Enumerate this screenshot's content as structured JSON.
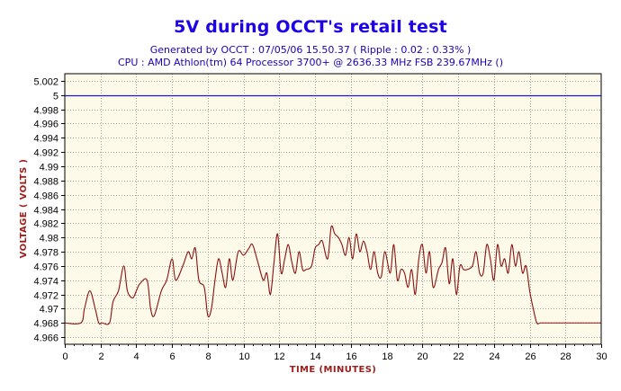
{
  "chart_data": {
    "type": "line",
    "title": "5V during OCCT's retail test",
    "subtitle_lines": [
      "Generated by OCCT : 07/05/06 15.50.37 ( Ripple : 0.02 : 0.33% )",
      "CPU : AMD Athlon(tm) 64 Processor 3700+ @ 2636.33 MHz FSB 239.67MHz ()"
    ],
    "xlabel": "TIME (MINUTES)",
    "ylabel": "VOLTAGE ( VOLTS )",
    "xlim": [
      0,
      30
    ],
    "ylim": [
      4.965,
      5.003
    ],
    "x_ticks": [
      "0",
      "2",
      "4",
      "6",
      "8",
      "10",
      "12",
      "14",
      "16",
      "18",
      "20",
      "22",
      "24",
      "26",
      "28",
      "30"
    ],
    "x_tick_values": [
      0,
      2,
      4,
      6,
      8,
      10,
      12,
      14,
      16,
      18,
      20,
      22,
      24,
      26,
      28,
      30
    ],
    "y_ticks": [
      "4.966",
      "4.968",
      "4.97",
      "4.972",
      "4.974",
      "4.976",
      "4.978",
      "4.98",
      "4.982",
      "4.984",
      "4.986",
      "4.988",
      "4.99",
      "4.992",
      "4.994",
      "4.996",
      "4.998",
      "5",
      "5.002"
    ],
    "y_tick_values": [
      4.966,
      4.968,
      4.97,
      4.972,
      4.974,
      4.976,
      4.978,
      4.98,
      4.982,
      4.984,
      4.986,
      4.988,
      4.99,
      4.992,
      4.994,
      4.996,
      4.998,
      5.0,
      5.002
    ],
    "grid": true,
    "reference_line": {
      "y": 5.0,
      "color": "#1a1ad6"
    },
    "series": [
      {
        "color": "#8b1010",
        "x": [
          0,
          0.9,
          1.1,
          1.4,
          1.7,
          1.9,
          2.1,
          2.5,
          2.7,
          3.0,
          3.3,
          3.5,
          3.8,
          4.0,
          4.2,
          4.6,
          4.8,
          5.0,
          5.4,
          5.7,
          6.0,
          6.2,
          6.6,
          6.9,
          7.1,
          7.3,
          7.5,
          7.8,
          8.0,
          8.2,
          8.4,
          8.6,
          8.8,
          9.0,
          9.2,
          9.4,
          9.7,
          10.0,
          10.3,
          10.5,
          10.8,
          11.1,
          11.3,
          11.5,
          11.7,
          11.9,
          12.1,
          12.3,
          12.5,
          12.7,
          12.9,
          13.1,
          13.3,
          13.5,
          13.8,
          14.0,
          14.2,
          14.4,
          14.7,
          14.9,
          15.1,
          15.3,
          15.5,
          15.7,
          15.9,
          16.1,
          16.3,
          16.5,
          16.7,
          16.9,
          17.1,
          17.3,
          17.5,
          17.7,
          17.9,
          18.2,
          18.4,
          18.6,
          18.8,
          19.0,
          19.2,
          19.4,
          19.6,
          19.8,
          20.0,
          20.2,
          20.4,
          20.6,
          20.9,
          21.1,
          21.3,
          21.5,
          21.7,
          21.9,
          22.1,
          22.3,
          22.5,
          22.8,
          23.0,
          23.2,
          23.4,
          23.6,
          23.8,
          24.0,
          24.2,
          24.4,
          24.6,
          24.8,
          25.0,
          25.2,
          25.4,
          25.6,
          25.8,
          26.0,
          26.2,
          26.4,
          26.6,
          27.0,
          30
        ],
        "values": [
          4.968,
          4.968,
          4.97,
          4.9725,
          4.97,
          4.968,
          4.968,
          4.968,
          4.971,
          4.9725,
          4.976,
          4.9725,
          4.9715,
          4.9725,
          4.9735,
          4.974,
          4.97,
          4.969,
          4.9725,
          4.974,
          4.977,
          4.974,
          4.976,
          4.978,
          4.977,
          4.9785,
          4.974,
          4.973,
          4.969,
          4.97,
          4.974,
          4.977,
          4.975,
          4.973,
          4.977,
          4.974,
          4.978,
          4.9775,
          4.9785,
          4.979,
          4.9765,
          4.974,
          4.975,
          4.972,
          4.9765,
          4.9805,
          4.975,
          4.977,
          4.979,
          4.9765,
          4.975,
          4.978,
          4.9755,
          4.9755,
          4.976,
          4.9785,
          4.979,
          4.9795,
          4.977,
          4.9815,
          4.9805,
          4.98,
          4.979,
          4.9775,
          4.98,
          4.977,
          4.9805,
          4.978,
          4.9795,
          4.978,
          4.9755,
          4.978,
          4.975,
          4.9745,
          4.978,
          4.975,
          4.979,
          4.974,
          4.9755,
          4.975,
          4.973,
          4.9755,
          4.972,
          4.977,
          4.979,
          4.975,
          4.978,
          4.973,
          4.9755,
          4.9765,
          4.9785,
          4.9735,
          4.977,
          4.972,
          4.976,
          4.9755,
          4.9755,
          4.976,
          4.978,
          4.975,
          4.975,
          4.979,
          4.977,
          4.974,
          4.979,
          4.976,
          4.977,
          4.975,
          4.979,
          4.976,
          4.978,
          4.975,
          4.976,
          4.9725,
          4.97,
          4.968,
          4.968,
          4.968,
          4.968
        ]
      }
    ]
  },
  "colors": {
    "plot_background": "#fefaea",
    "title": "#1d00e6",
    "subtitle": "#1d00b8",
    "axis_title": "#9b1c18",
    "grid": "#888888"
  }
}
